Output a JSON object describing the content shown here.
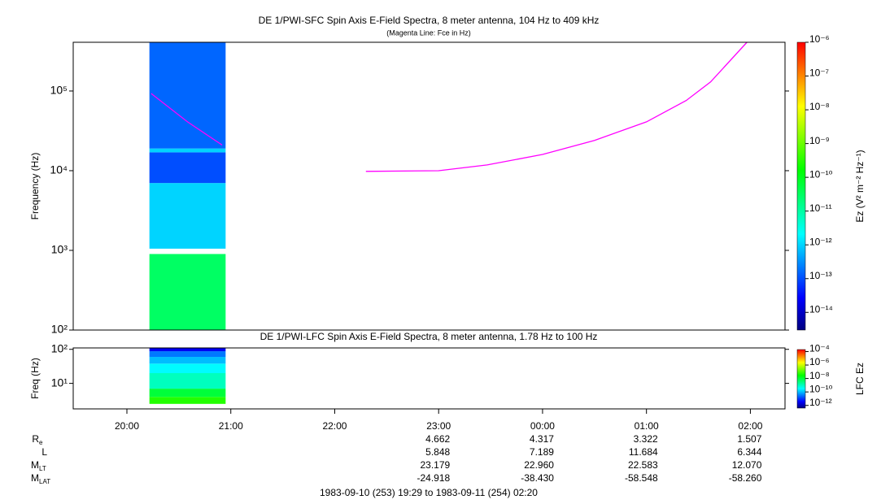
{
  "chart_data": [
    {
      "type": "spectrogram",
      "title": "DE 1/PWI-SFC  Spin Axis E-Field Spectra, 8 meter antenna, 104 Hz to 409 kHz",
      "subtitle": "(Magenta Line: Fce in Hz)",
      "ylabel": "Frequency (Hz)",
      "ylog": true,
      "xlim": [
        "1983-09-10T19:29",
        "1983-09-11T02:20"
      ],
      "ylim": [
        100,
        409000
      ],
      "yticks": [
        {
          "value": 100,
          "label": "10²"
        },
        {
          "value": 1000,
          "label": "10³"
        },
        {
          "value": 10000,
          "label": "10⁴"
        },
        {
          "value": 100000,
          "label": "10⁵"
        }
      ],
      "cells": [
        {
          "x": [
            "1983-09-10T20:13",
            "1983-09-10T20:57"
          ],
          "y": [
            100,
            900
          ],
          "z": 3e-11
        },
        {
          "x": [
            "1983-09-10T20:13",
            "1983-09-10T20:57"
          ],
          "y": [
            1050,
            7000
          ],
          "z": 1e-12
        },
        {
          "x": [
            "1983-09-10T20:13",
            "1983-09-10T20:57"
          ],
          "y": [
            7000,
            17000
          ],
          "z": 1e-13
        },
        {
          "x": [
            "1983-09-10T20:13",
            "1983-09-10T20:57"
          ],
          "y": [
            17000,
            19000
          ],
          "z": 1e-12
        },
        {
          "x": [
            "1983-09-10T20:13",
            "1983-09-10T20:57"
          ],
          "y": [
            19000,
            409000
          ],
          "z": 1.5e-13
        }
      ],
      "colorbar": {
        "label": "Ez (V² m⁻² Hz⁻¹)",
        "zlim": [
          3e-15,
          1e-06
        ],
        "zticks": [
          {
            "value": 1e-06,
            "label": "10⁻⁶"
          },
          {
            "value": 1e-07,
            "label": "10⁻⁷"
          },
          {
            "value": 1e-08,
            "label": "10⁻⁸"
          },
          {
            "value": 1e-09,
            "label": "10⁻⁹"
          },
          {
            "value": 1e-10,
            "label": "10⁻¹⁰"
          },
          {
            "value": 1e-11,
            "label": "10⁻¹¹"
          },
          {
            "value": 1e-12,
            "label": "10⁻¹²"
          },
          {
            "value": 1e-13,
            "label": "10⁻¹³"
          },
          {
            "value": 1e-14,
            "label": "10⁻¹⁴"
          }
        ],
        "colormap": [
          "#000080",
          "#0000ff",
          "#0080ff",
          "#00ffff",
          "#00ff80",
          "#00ff00",
          "#80ff00",
          "#ffff00",
          "#ff8000",
          "#ff0000"
        ]
      },
      "series": [
        {
          "color": "#ff00ff",
          "x": [
            "1983-09-10T20:14",
            "1983-09-10T20:35",
            "1983-09-10T20:55"
          ],
          "values": [
            93000,
            41000,
            21000
          ]
        },
        {
          "color": "#ff00ff",
          "x": [
            "1983-09-10T22:18",
            "1983-09-10T23:00",
            "1983-09-10T23:28",
            "1983-09-11T00:00",
            "1983-09-11T00:30",
            "1983-09-11T01:00",
            "1983-09-11T01:23",
            "1983-09-11T01:37",
            "1983-09-11T01:58"
          ],
          "values": [
            9800,
            10000,
            11800,
            16000,
            24000,
            41000,
            76000,
            130000,
            409000
          ]
        }
      ]
    },
    {
      "type": "spectrogram",
      "title": "DE 1/PWI-LFC  Spin Axis E-Field Spectra, 8 meter antenna, 1.78 Hz to 100 Hz",
      "ylabel": "Freq (Hz)",
      "ylog": true,
      "xlim": [
        "1983-09-10T19:29",
        "1983-09-11T02:20"
      ],
      "ylim": [
        1.78,
        110
      ],
      "yticks": [
        {
          "value": 10,
          "label": "10¹"
        },
        {
          "value": 100,
          "label": "10²"
        }
      ],
      "xticks": [
        {
          "value": "1983-09-10T20:00",
          "label": "20:00"
        },
        {
          "value": "1983-09-10T21:00",
          "label": "21:00"
        },
        {
          "value": "1983-09-10T22:00",
          "label": "22:00"
        },
        {
          "value": "1983-09-10T23:00",
          "label": "23:00"
        },
        {
          "value": "1983-09-11T00:00",
          "label": "00:00"
        },
        {
          "value": "1983-09-11T01:00",
          "label": "01:00"
        },
        {
          "value": "1983-09-11T02:00",
          "label": "02:00"
        }
      ],
      "cells": [
        {
          "x": [
            "1983-09-10T20:13",
            "1983-09-10T20:57"
          ],
          "y": [
            2.5,
            4
          ],
          "z": 5e-08
        },
        {
          "x": [
            "1983-09-10T20:13",
            "1983-09-10T20:57"
          ],
          "y": [
            4,
            7
          ],
          "z": 1e-08
        },
        {
          "x": [
            "1983-09-10T20:13",
            "1983-09-10T20:57"
          ],
          "y": [
            7,
            20
          ],
          "z": 1e-09
        },
        {
          "x": [
            "1983-09-10T20:13",
            "1983-09-10T20:57"
          ],
          "y": [
            20,
            38
          ],
          "z": 3e-10
        },
        {
          "x": [
            "1983-09-10T20:13",
            "1983-09-10T20:57"
          ],
          "y": [
            38,
            60
          ],
          "z": 1e-10
        },
        {
          "x": [
            "1983-09-10T20:13",
            "1983-09-10T20:57"
          ],
          "y": [
            60,
            88
          ],
          "z": 3e-11
        },
        {
          "x": [
            "1983-09-10T20:13",
            "1983-09-10T20:57"
          ],
          "y": [
            88,
            110
          ],
          "z": 3e-12
        }
      ],
      "colorbar": {
        "label": "LFC Ez",
        "zlim": [
          4e-13,
          0.0002
        ],
        "zticks": [
          {
            "value": 0.0001,
            "label": "10⁻⁴"
          },
          {
            "value": 1e-06,
            "label": "10⁻⁶"
          },
          {
            "value": 1e-08,
            "label": "10⁻⁸"
          },
          {
            "value": 1e-10,
            "label": "10⁻¹⁰"
          },
          {
            "value": 1e-12,
            "label": "10⁻¹²"
          }
        ],
        "colormap": [
          "#000080",
          "#0000ff",
          "#0080ff",
          "#00ffff",
          "#00ff80",
          "#00ff00",
          "#80ff00",
          "#ffff00",
          "#ff8000",
          "#ff0000"
        ]
      }
    }
  ],
  "ephemeris": {
    "x": [
      "1983-09-10T23:00",
      "1983-09-11T00:00",
      "1983-09-11T01:00",
      "1983-09-11T02:00"
    ],
    "rows": [
      {
        "label": "R",
        "sub": "e",
        "values": [
          "4.662",
          "4.317",
          "3.322",
          "1.507"
        ]
      },
      {
        "label": "L",
        "values": [
          "5.848",
          "7.189",
          "11.684",
          "6.344"
        ]
      },
      {
        "label": "M",
        "sub": "LT",
        "values": [
          "23.179",
          "22.960",
          "22.583",
          "12.070"
        ]
      },
      {
        "label": "M",
        "sub": "LAT",
        "values": [
          "-24.918",
          "-38.430",
          "-58.548",
          "-58.260"
        ]
      }
    ]
  },
  "footer": "1983-09-10 (253) 19:29 to 1983-09-11 (254) 02:20"
}
